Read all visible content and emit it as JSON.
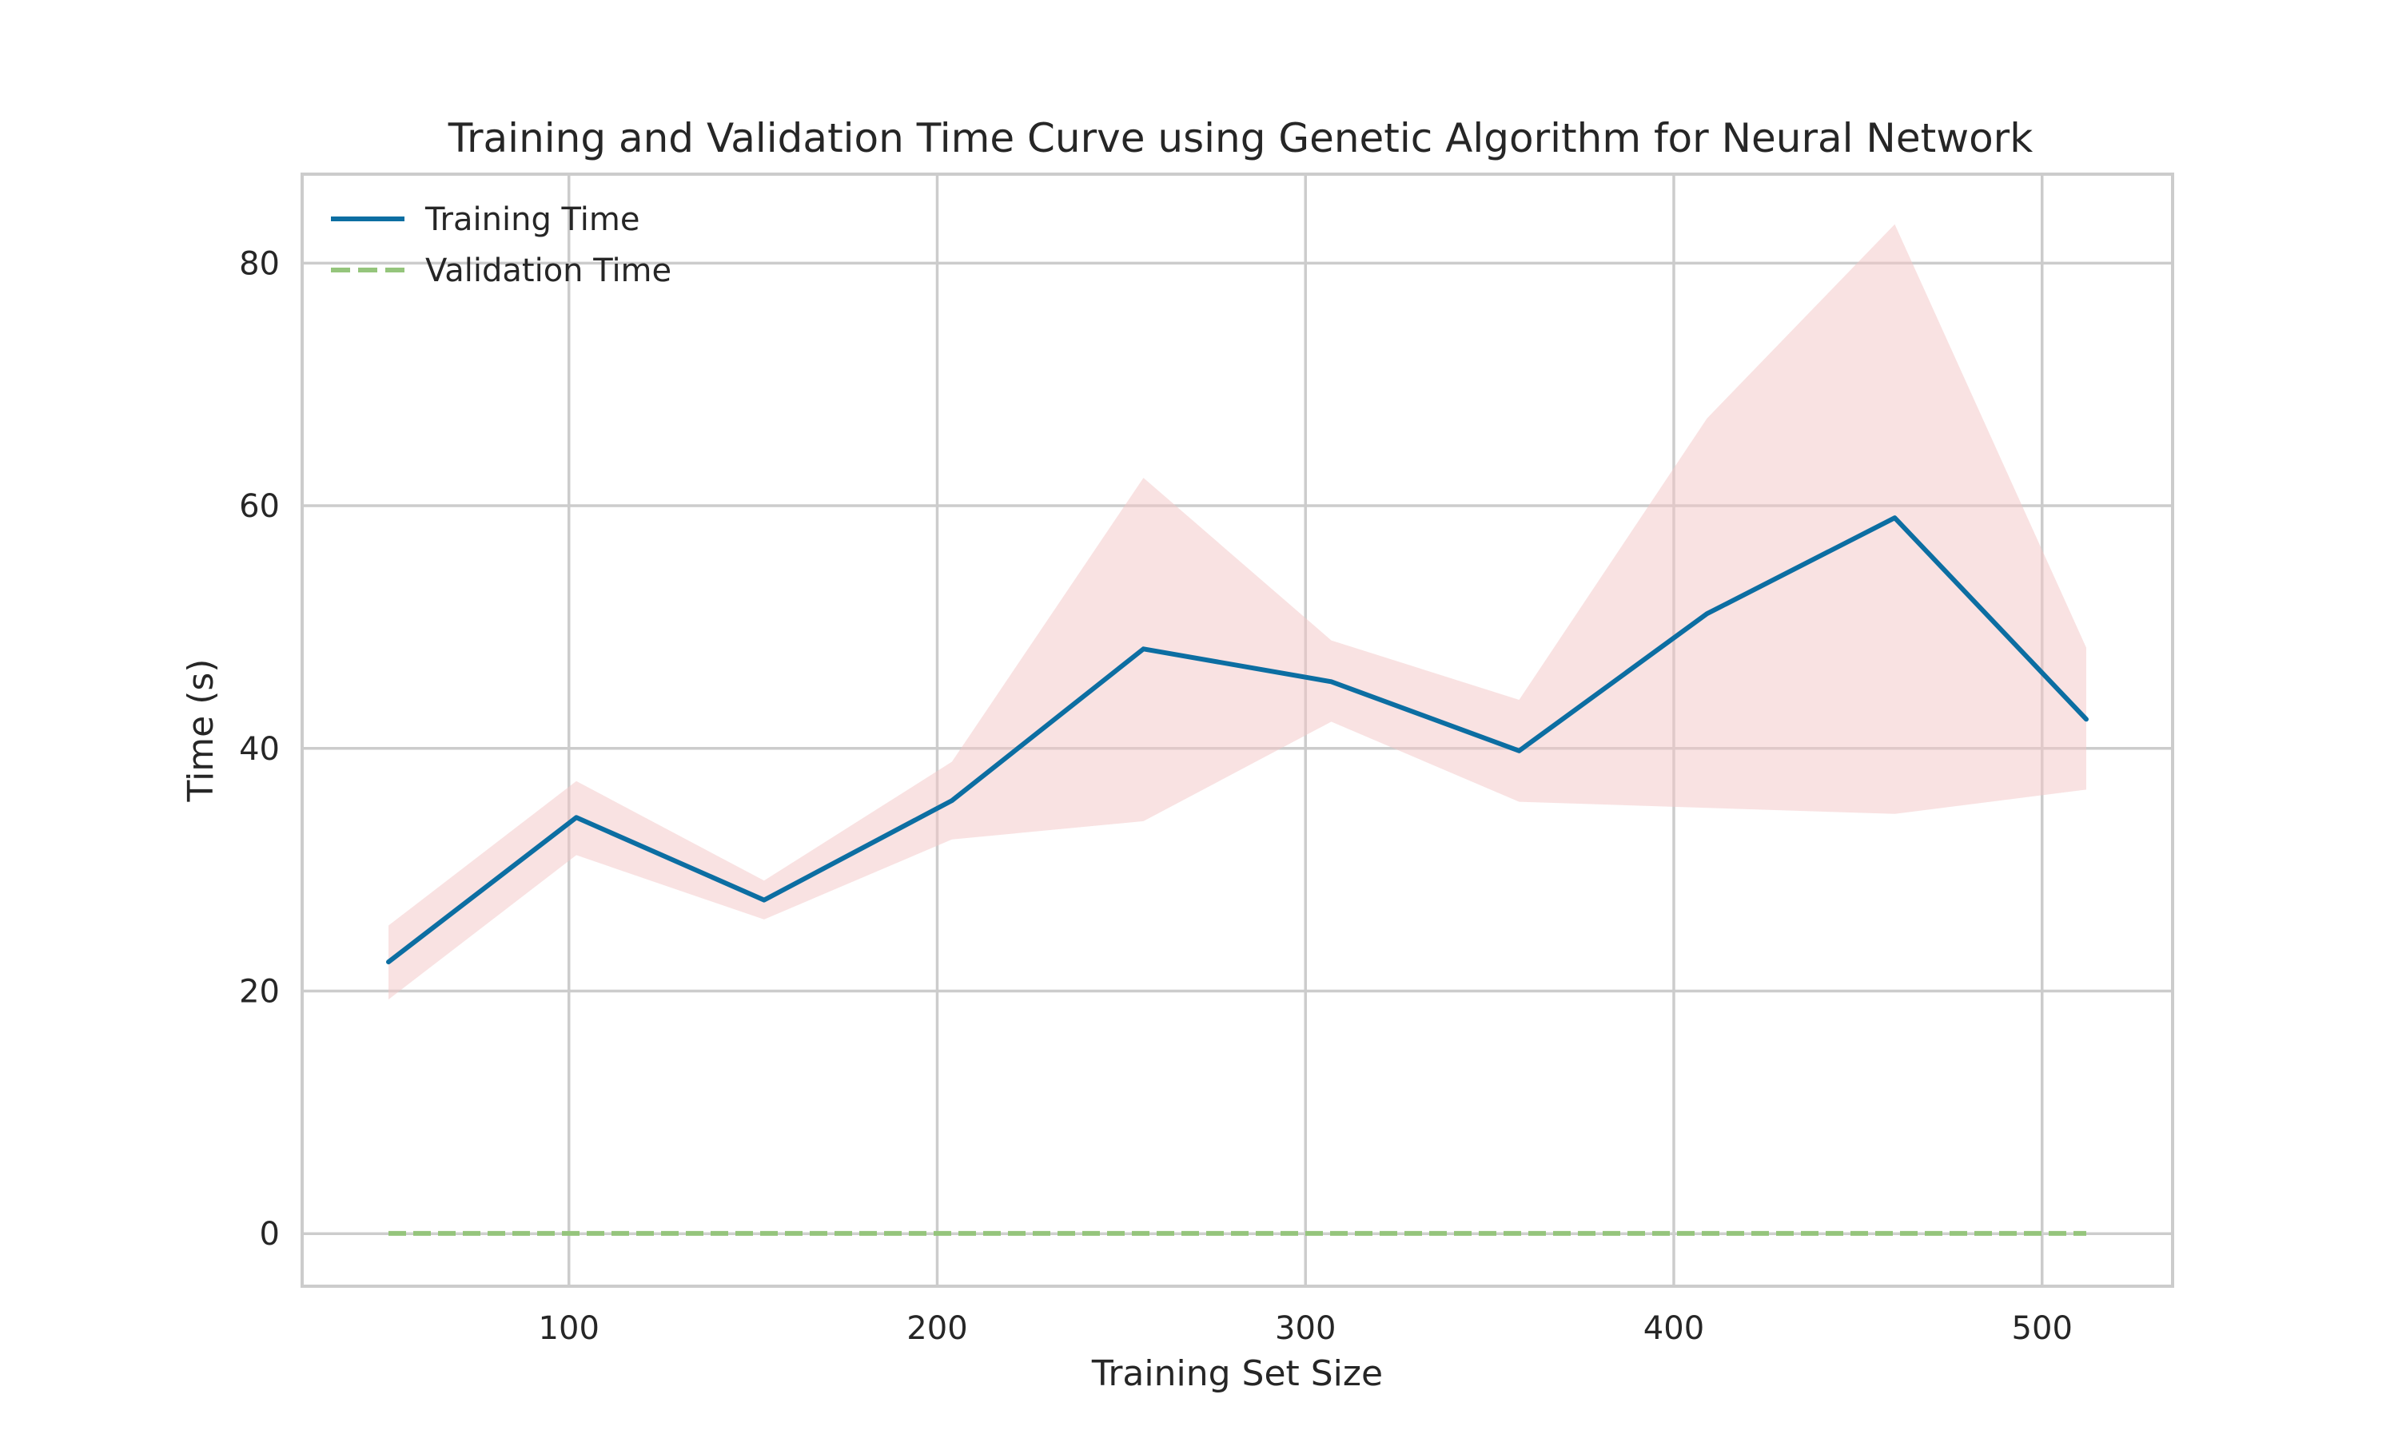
{
  "chart_data": {
    "type": "line",
    "title": "Training and Validation Time Curve using Genetic Algorithm for Neural Network",
    "xlabel": "Training Set Size",
    "ylabel": "Time (s)",
    "x": [
      51,
      102,
      153,
      204,
      256,
      307,
      358,
      409,
      460,
      512
    ],
    "xlim": [
      28,
      535
    ],
    "ylim": [
      -4.2,
      87.2
    ],
    "xticks": [
      100,
      200,
      300,
      400,
      500
    ],
    "yticks": [
      0,
      20,
      40,
      60,
      80
    ],
    "xtick_labels": [
      "100",
      "200",
      "300",
      "400",
      "500"
    ],
    "ytick_labels": [
      "0",
      "20",
      "40",
      "60",
      "80"
    ],
    "grid": true,
    "legend_position": "top-left",
    "series": [
      {
        "name": "Training Time",
        "style": "solid",
        "color": "#0c6ea2",
        "values": [
          22.4,
          34.3,
          27.5,
          35.7,
          48.2,
          45.5,
          39.8,
          51.1,
          59.0,
          42.4
        ],
        "band_lower": [
          19.3,
          31.2,
          25.9,
          32.5,
          34.0,
          42.2,
          35.6,
          35.1,
          34.6,
          36.6
        ],
        "band_upper": [
          25.4,
          37.3,
          29.1,
          38.9,
          62.3,
          48.9,
          44.0,
          67.2,
          83.2,
          48.3
        ],
        "band_color": "#f4c6c6"
      },
      {
        "name": "Validation Time",
        "style": "dashed",
        "color": "#95c57c",
        "values": [
          0.02,
          0.02,
          0.02,
          0.02,
          0.02,
          0.02,
          0.02,
          0.02,
          0.02,
          0.02
        ],
        "band_lower": [
          0.0,
          0.0,
          0.0,
          0.0,
          0.0,
          0.0,
          0.0,
          0.0,
          0.0,
          0.0
        ],
        "band_upper": [
          0.04,
          0.04,
          0.04,
          0.04,
          0.04,
          0.04,
          0.04,
          0.04,
          0.04,
          0.04
        ],
        "band_color": "#dfeedd"
      }
    ]
  }
}
